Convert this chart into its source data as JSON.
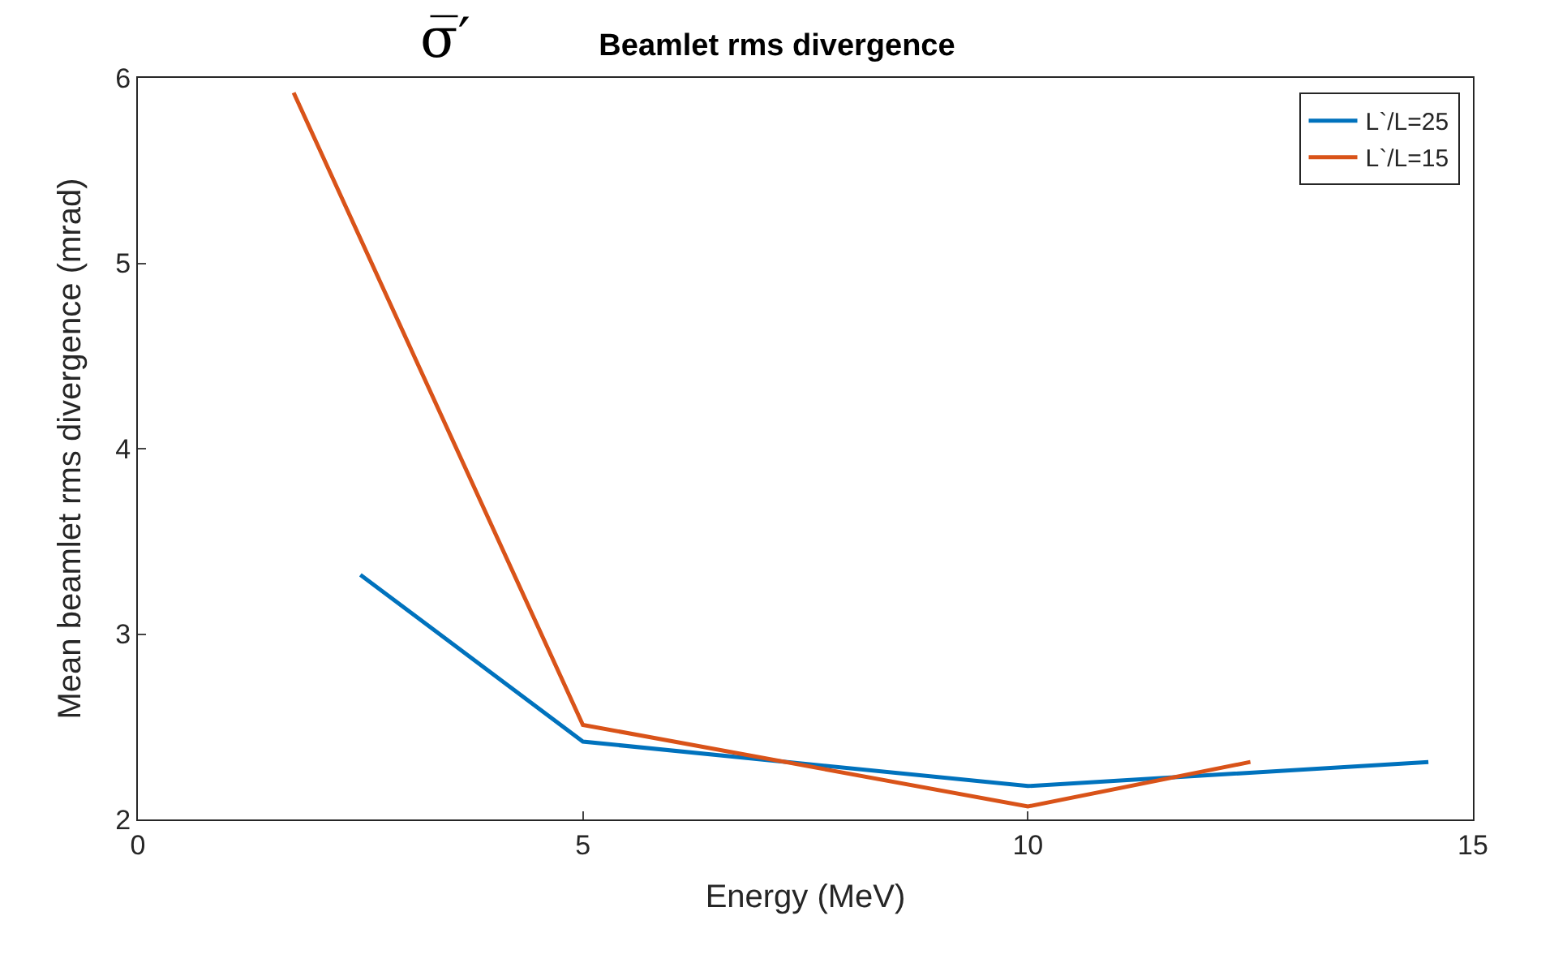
{
  "chart_data": {
    "type": "line",
    "title": "Beamlet rms divergence",
    "xlabel": "Energy (MeV)",
    "ylabel": "Mean beamlet rms divergence (mrad)",
    "annotations": [
      "σ̅′"
    ],
    "xlim": [
      0,
      15
    ],
    "xticks": [
      0,
      5,
      10,
      15
    ],
    "ylim": [
      2,
      6
    ],
    "yticks": [
      2,
      3,
      4,
      5,
      6
    ],
    "legend": "top right",
    "series": [
      {
        "name": "L`/L=25",
        "color": "#0072bd",
        "x": [
          2.5,
          5,
          10,
          14.5
        ],
        "values": [
          3.32,
          2.42,
          2.18,
          2.31
        ]
      },
      {
        "name": "L`/L=15",
        "color": "#d95319",
        "x": [
          1.75,
          5,
          10,
          12.5
        ],
        "values": [
          5.92,
          2.51,
          2.07,
          2.31
        ]
      }
    ]
  }
}
